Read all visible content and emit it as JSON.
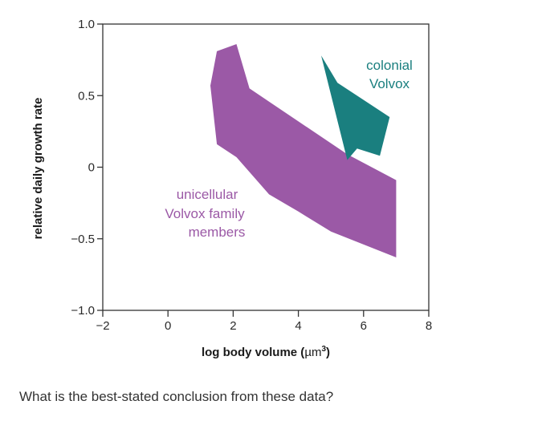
{
  "chart_data": {
    "type": "area",
    "title": "",
    "xlabel": "log body volume (µm³)",
    "xlabel_main": "log body volume (",
    "xlabel_unit": "µm",
    "xlabel_sup": "3",
    "xlabel_close": ")",
    "ylabel": "relative daily growth rate",
    "xlim": [
      -2,
      8
    ],
    "ylim": [
      -1.0,
      1.0
    ],
    "x_ticks": [
      -2,
      0,
      2,
      4,
      6,
      8
    ],
    "x_tick_labels": [
      "−2",
      "0",
      "2",
      "4",
      "6",
      "8"
    ],
    "y_ticks": [
      -1.0,
      -0.5,
      0,
      0.5,
      1.0
    ],
    "y_tick_labels": [
      "−1.0",
      "−0.5",
      "0",
      "0.5",
      "1.0"
    ],
    "grid": false,
    "series": [
      {
        "name": "unicellular Volvox family members",
        "label_lines": [
          "unicellular",
          "Volvox family",
          "members"
        ],
        "color": "#9b59a6",
        "polygon": [
          [
            1.3,
            0.57
          ],
          [
            1.5,
            0.81
          ],
          [
            2.1,
            0.86
          ],
          [
            2.5,
            0.55
          ],
          [
            5.5,
            0.09
          ],
          [
            7.0,
            -0.09
          ],
          [
            7.0,
            -0.63
          ],
          [
            5.0,
            -0.45
          ],
          [
            4.0,
            -0.31
          ],
          [
            3.1,
            -0.19
          ],
          [
            2.1,
            0.07
          ],
          [
            1.5,
            0.16
          ]
        ]
      },
      {
        "name": "colonial Volvox",
        "label_lines": [
          "colonial",
          "Volvox"
        ],
        "color": "#1a7f7f",
        "polygon": [
          [
            4.7,
            0.78
          ],
          [
            5.2,
            0.59
          ],
          [
            6.8,
            0.35
          ],
          [
            6.5,
            0.08
          ],
          [
            5.8,
            0.13
          ],
          [
            5.5,
            0.05
          ]
        ]
      }
    ]
  },
  "question": "What is the best-stated conclusion from these data?"
}
